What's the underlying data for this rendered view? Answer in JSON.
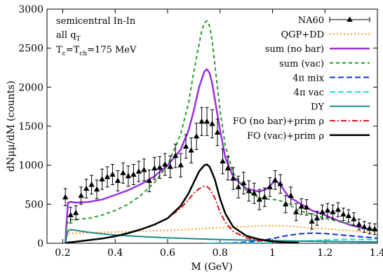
{
  "chart_data": {
    "type": "line",
    "xlabel": "M (GeV)",
    "ylabel": "dNμμ/dM (counts)",
    "xlim": [
      0.14,
      1.4
    ],
    "ylim": [
      0,
      3000
    ],
    "x_ticks": [
      "0.2",
      "0.4",
      "0.6",
      "0.8",
      "1",
      "1.2",
      "1.4"
    ],
    "x_tick_values": [
      0.2,
      0.4,
      0.6,
      0.8,
      1.0,
      1.2,
      1.4
    ],
    "y_ticks": [
      "0",
      "500",
      "1000",
      "1500",
      "2000",
      "2500",
      "3000"
    ],
    "y_tick_values": [
      0,
      500,
      1000,
      1500,
      2000,
      2500,
      3000
    ],
    "grid": false,
    "legend_position": "top-right",
    "annotation": {
      "line1": "semicentral In-In",
      "line2_main": "all q",
      "line2_sub": "T",
      "line3_a": "T",
      "line3_a_sub": "c",
      "line3_b": "=T",
      "line3_b_sub": "ch",
      "line3_c": "=175 MeV"
    },
    "series": [
      {
        "name": "NA60",
        "kind": "errorbar",
        "color": "#000000",
        "x": [
          0.21,
          0.23,
          0.25,
          0.27,
          0.29,
          0.31,
          0.33,
          0.35,
          0.37,
          0.39,
          0.41,
          0.43,
          0.45,
          0.47,
          0.49,
          0.51,
          0.53,
          0.55,
          0.57,
          0.59,
          0.61,
          0.63,
          0.65,
          0.67,
          0.69,
          0.71,
          0.73,
          0.75,
          0.77,
          0.79,
          0.81,
          0.83,
          0.85,
          0.87,
          0.89,
          0.91,
          0.93,
          0.95,
          0.97,
          0.99,
          1.01,
          1.03,
          1.05,
          1.07,
          1.09,
          1.11,
          1.13,
          1.15,
          1.17,
          1.19,
          1.21,
          1.23,
          1.25,
          1.27,
          1.29,
          1.31,
          1.33,
          1.35,
          1.37,
          1.39
        ],
        "y": [
          590,
          360,
          390,
          610,
          700,
          750,
          690,
          820,
          850,
          880,
          800,
          900,
          860,
          880,
          920,
          940,
          800,
          960,
          970,
          1010,
          980,
          1120,
          1000,
          1240,
          1190,
          1370,
          1560,
          1560,
          1530,
          1420,
          1050,
          960,
          830,
          720,
          770,
          670,
          640,
          560,
          590,
          720,
          810,
          760,
          500,
          610,
          400,
          470,
          460,
          280,
          320,
          400,
          420,
          400,
          430,
          370,
          350,
          310,
          240,
          210,
          190,
          180
        ],
        "yerr": [
          110,
          100,
          90,
          110,
          120,
          120,
          120,
          130,
          130,
          130,
          130,
          130,
          130,
          130,
          130,
          140,
          140,
          140,
          140,
          140,
          140,
          150,
          150,
          150,
          160,
          170,
          180,
          180,
          180,
          170,
          160,
          150,
          140,
          140,
          140,
          130,
          130,
          130,
          120,
          120,
          120,
          120,
          110,
          110,
          110,
          100,
          100,
          100,
          90,
          90,
          90,
          90,
          90,
          80,
          80,
          80,
          70,
          70,
          70,
          70
        ]
      },
      {
        "name": "QGP+DD",
        "kind": "line",
        "color": "#f0a020",
        "dash": "2,3",
        "width": 2,
        "x": [
          0.21,
          0.215,
          0.22,
          0.25,
          0.3,
          0.4,
          0.5,
          0.6,
          0.7,
          0.8,
          0.9,
          0.95,
          1.0,
          1.05,
          1.1,
          1.2,
          1.3,
          1.4
        ],
        "y": [
          0,
          60,
          120,
          130,
          135,
          145,
          155,
          165,
          180,
          200,
          215,
          222,
          225,
          222,
          210,
          185,
          160,
          135
        ]
      },
      {
        "name": "sum (no bar)",
        "kind": "line",
        "color": "#9b30e0",
        "dash": "",
        "width": 2.5,
        "x": [
          0.21,
          0.215,
          0.22,
          0.23,
          0.25,
          0.3,
          0.35,
          0.4,
          0.45,
          0.5,
          0.55,
          0.6,
          0.65,
          0.68,
          0.7,
          0.72,
          0.74,
          0.75,
          0.76,
          0.77,
          0.78,
          0.8,
          0.82,
          0.85,
          0.9,
          0.95,
          0.98,
          1.0,
          1.01,
          1.02,
          1.04,
          1.06,
          1.1,
          1.15,
          1.2,
          1.25,
          1.3,
          1.35,
          1.4
        ],
        "y": [
          0,
          280,
          520,
          530,
          520,
          530,
          560,
          620,
          680,
          760,
          860,
          1000,
          1200,
          1450,
          1700,
          2000,
          2200,
          2230,
          2180,
          2050,
          1850,
          1450,
          1100,
          850,
          700,
          660,
          700,
          770,
          790,
          780,
          700,
          600,
          520,
          420,
          360,
          290,
          230,
          190,
          160
        ]
      },
      {
        "name": "sum (vac)",
        "kind": "line",
        "color": "#2a9a2a",
        "dash": "5,4",
        "width": 2,
        "x": [
          0.21,
          0.215,
          0.22,
          0.23,
          0.25,
          0.3,
          0.35,
          0.4,
          0.45,
          0.5,
          0.55,
          0.6,
          0.65,
          0.68,
          0.7,
          0.72,
          0.73,
          0.74,
          0.75,
          0.76,
          0.77,
          0.78,
          0.8,
          0.82,
          0.85,
          0.9,
          0.95,
          1.0,
          1.02,
          1.05,
          1.1,
          1.2,
          1.3,
          1.4
        ],
        "y": [
          0,
          200,
          300,
          300,
          305,
          320,
          360,
          420,
          500,
          620,
          780,
          1000,
          1400,
          1800,
          2200,
          2550,
          2720,
          2820,
          2850,
          2780,
          2600,
          2300,
          1700,
          1250,
          900,
          680,
          580,
          560,
          555,
          520,
          420,
          320,
          240,
          170
        ]
      },
      {
        "name": "4π mix",
        "kind": "line",
        "color": "#1030d0",
        "dash": "8,4",
        "width": 2,
        "x": [
          0.75,
          0.85,
          0.9,
          0.95,
          1.0,
          1.05,
          1.1,
          1.15,
          1.2,
          1.25,
          1.3,
          1.35,
          1.4
        ],
        "y": [
          0,
          5,
          15,
          30,
          60,
          95,
          120,
          130,
          125,
          110,
          95,
          80,
          65
        ]
      },
      {
        "name": "4π vac",
        "kind": "line",
        "color": "#20e0e0",
        "dash": "8,4",
        "width": 2,
        "x": [
          0.75,
          0.9,
          1.0,
          1.1,
          1.2,
          1.25,
          1.3,
          1.35,
          1.4
        ],
        "y": [
          0,
          2,
          10,
          25,
          40,
          48,
          50,
          48,
          45
        ]
      },
      {
        "name": "DY",
        "kind": "line",
        "color": "#1a8a8a",
        "dash": "",
        "width": 2,
        "x": [
          0.21,
          0.215,
          0.22,
          0.23,
          0.25,
          0.3,
          0.35,
          0.4,
          0.5,
          0.6,
          0.7,
          0.8,
          0.9,
          1.0,
          1.1,
          1.2,
          1.3,
          1.4
        ],
        "y": [
          0,
          100,
          160,
          175,
          165,
          140,
          120,
          105,
          85,
          70,
          58,
          48,
          40,
          33,
          28,
          24,
          20,
          17
        ]
      },
      {
        "name": "FO (no bar)+prim ρ",
        "kind": "line",
        "color": "#e01010",
        "dash": "8,3,2,3",
        "width": 2,
        "x": [
          0.21,
          0.22,
          0.25,
          0.3,
          0.35,
          0.4,
          0.45,
          0.5,
          0.55,
          0.6,
          0.65,
          0.68,
          0.7,
          0.72,
          0.74,
          0.75,
          0.76,
          0.78,
          0.8,
          0.82,
          0.85,
          0.9,
          0.95,
          1.0,
          1.05,
          1.1
        ],
        "y": [
          0,
          10,
          20,
          40,
          60,
          90,
          130,
          180,
          240,
          320,
          450,
          560,
          640,
          700,
          730,
          725,
          700,
          580,
          400,
          270,
          150,
          70,
          35,
          20,
          10,
          5
        ]
      },
      {
        "name": "FO (vac)+prim ρ",
        "kind": "line",
        "color": "#000000",
        "dash": "",
        "width": 2.5,
        "x": [
          0.21,
          0.22,
          0.25,
          0.3,
          0.35,
          0.4,
          0.45,
          0.5,
          0.55,
          0.6,
          0.65,
          0.68,
          0.7,
          0.72,
          0.74,
          0.75,
          0.76,
          0.78,
          0.8,
          0.82,
          0.85,
          0.9,
          0.95,
          1.0,
          1.05,
          1.1
        ],
        "y": [
          0,
          10,
          20,
          40,
          60,
          90,
          130,
          180,
          240,
          320,
          480,
          640,
          780,
          920,
          1000,
          1010,
          980,
          820,
          570,
          380,
          210,
          95,
          50,
          25,
          12,
          5
        ]
      }
    ]
  }
}
